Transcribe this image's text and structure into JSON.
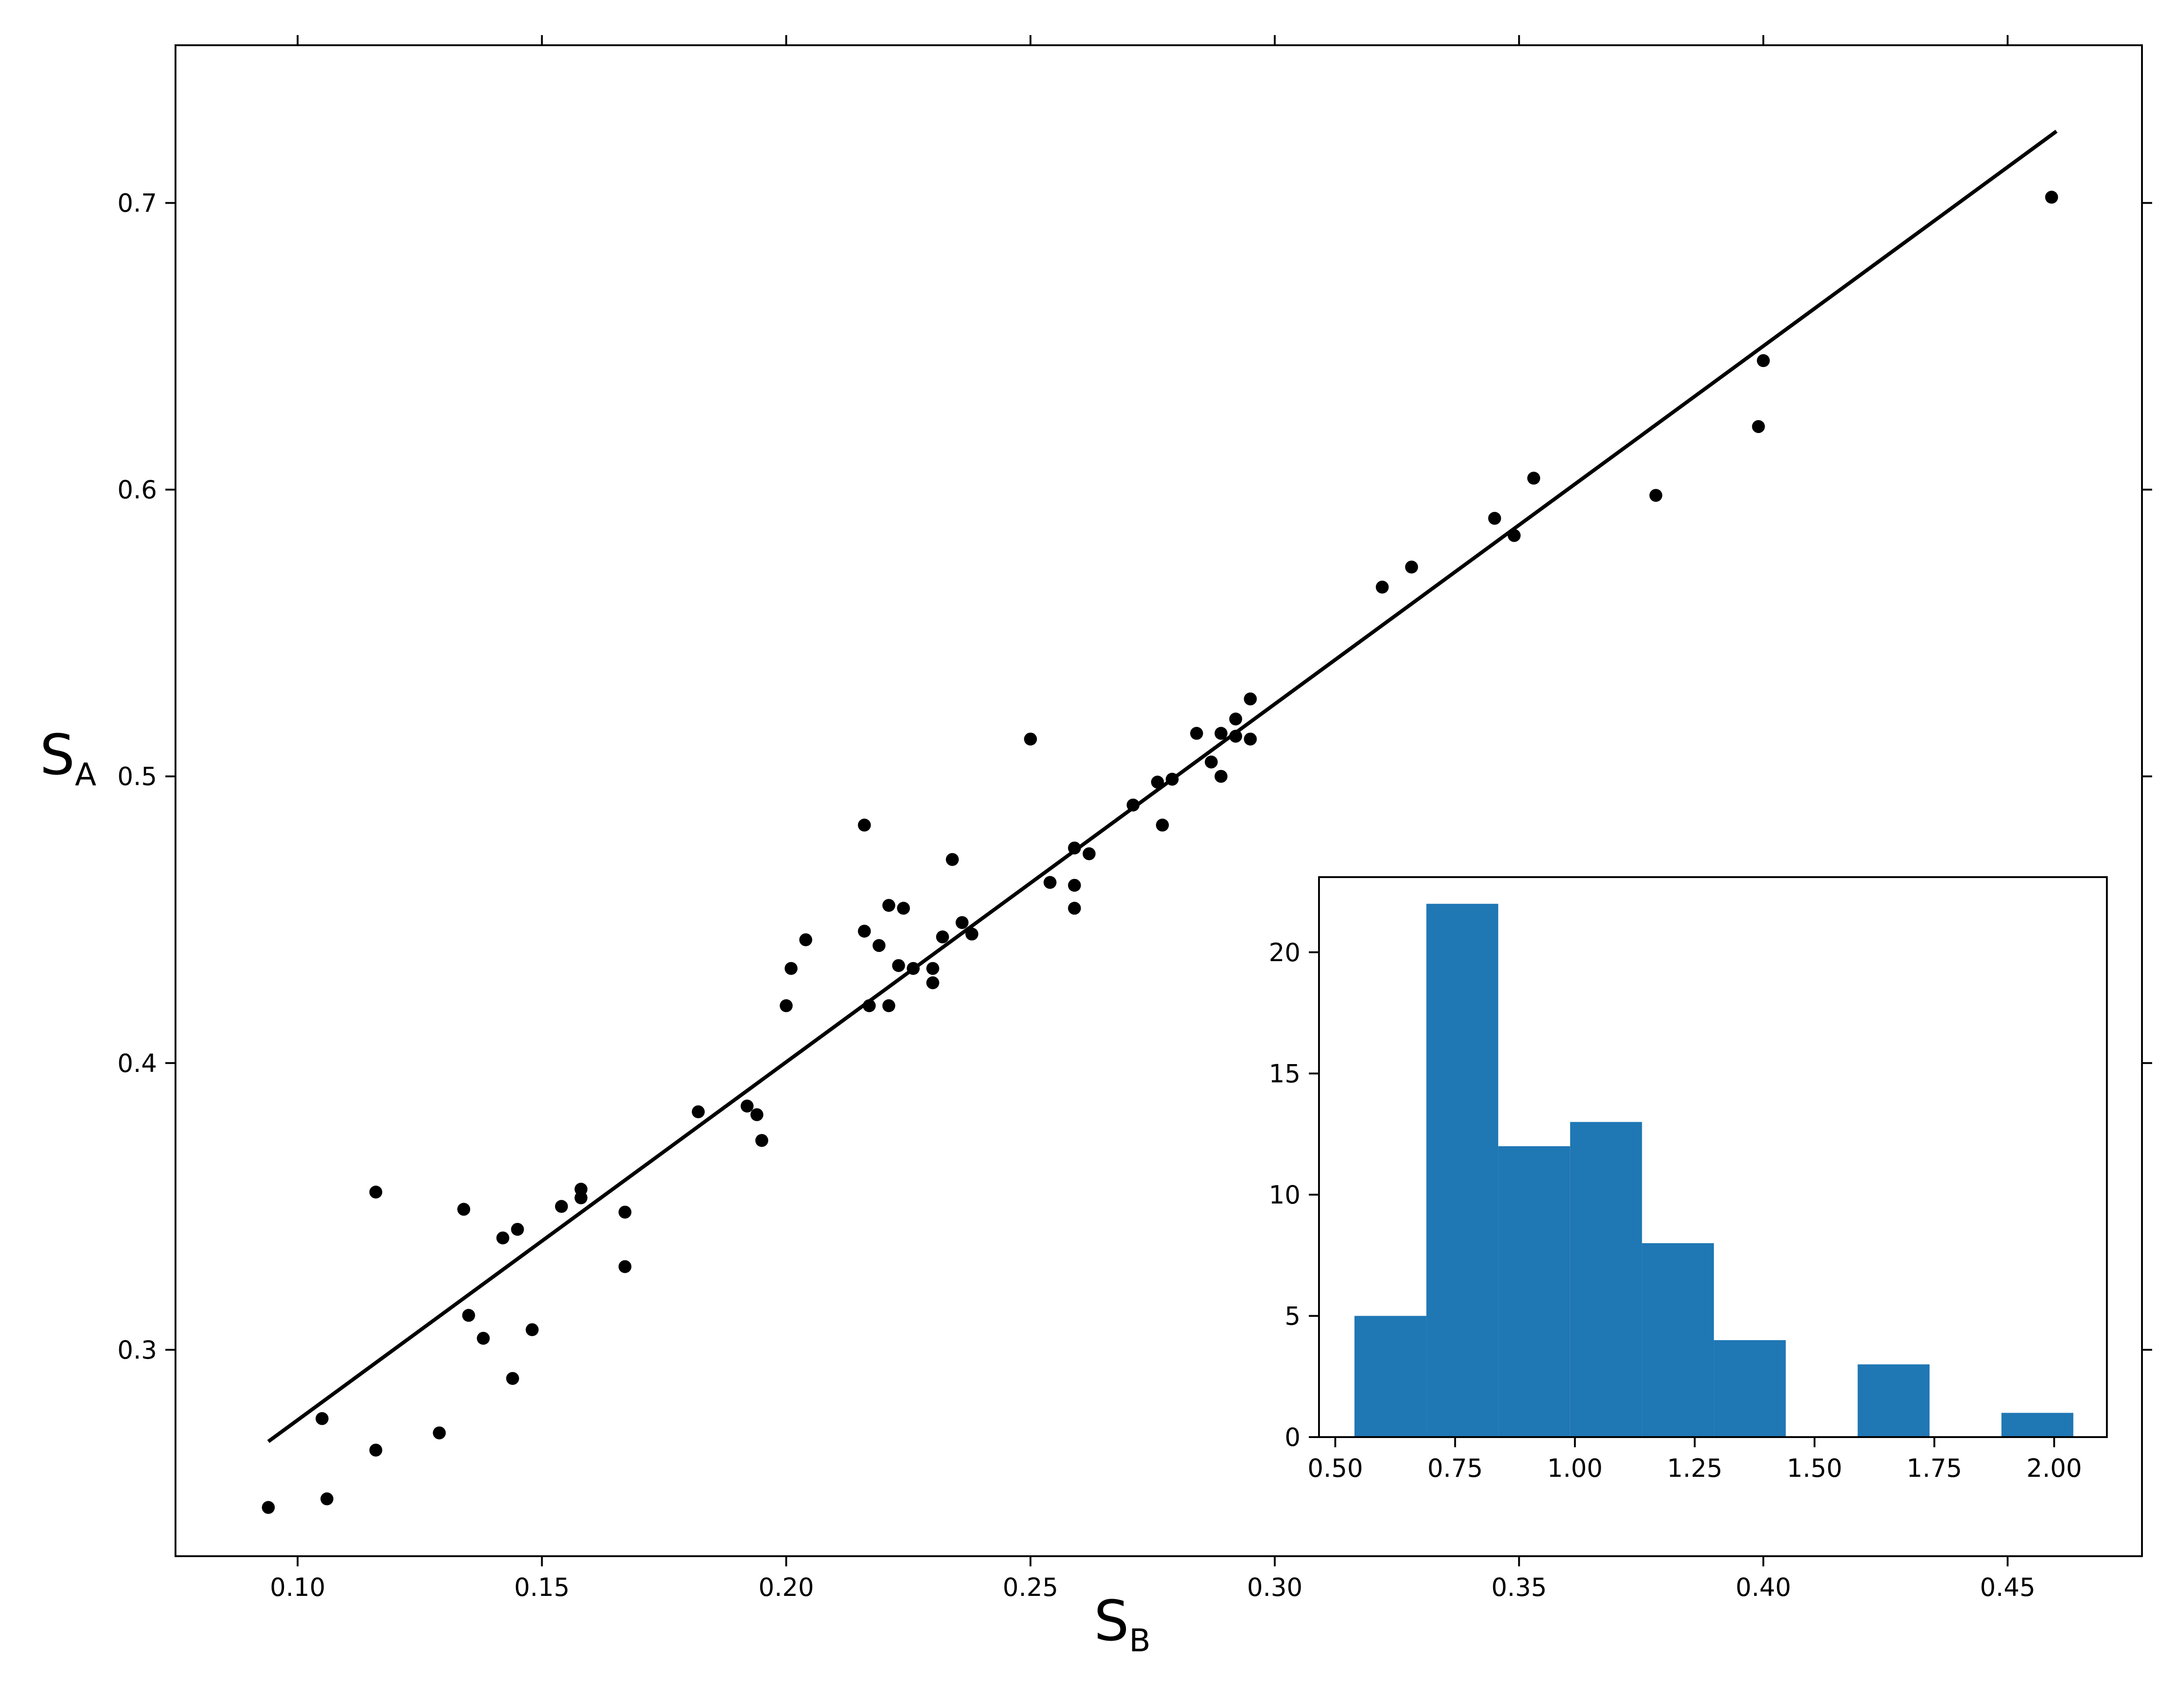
{
  "chart_data": [
    {
      "type": "scatter",
      "xlabel": "S",
      "xlabel_sub": "B",
      "ylabel": "S",
      "ylabel_sub": "A",
      "xlim": [
        0.075,
        0.4775
      ],
      "ylim": [
        0.228,
        0.755
      ],
      "xticks": [
        "0.10",
        "0.15",
        "0.20",
        "0.25",
        "0.30",
        "0.35",
        "0.40",
        "0.45"
      ],
      "yticks": [
        "0.3",
        "0.4",
        "0.5",
        "0.6",
        "0.7"
      ],
      "grid": false,
      "colors": {
        "points": "#000000",
        "fit_line": "#000000"
      },
      "fit_line": {
        "x": [
          0.094,
          0.46
        ],
        "y": [
          0.268,
          0.725
        ]
      },
      "points": [
        [
          0.094,
          0.245
        ],
        [
          0.105,
          0.276
        ],
        [
          0.106,
          0.248
        ],
        [
          0.116,
          0.355
        ],
        [
          0.116,
          0.265
        ],
        [
          0.129,
          0.271
        ],
        [
          0.134,
          0.349
        ],
        [
          0.135,
          0.312
        ],
        [
          0.138,
          0.304
        ],
        [
          0.142,
          0.339
        ],
        [
          0.144,
          0.29
        ],
        [
          0.145,
          0.342
        ],
        [
          0.148,
          0.307
        ],
        [
          0.154,
          0.35
        ],
        [
          0.158,
          0.356
        ],
        [
          0.158,
          0.353
        ],
        [
          0.167,
          0.348
        ],
        [
          0.167,
          0.329
        ],
        [
          0.182,
          0.383
        ],
        [
          0.192,
          0.385
        ],
        [
          0.194,
          0.382
        ],
        [
          0.195,
          0.373
        ],
        [
          0.2,
          0.42
        ],
        [
          0.201,
          0.433
        ],
        [
          0.204,
          0.443
        ],
        [
          0.216,
          0.483
        ],
        [
          0.216,
          0.446
        ],
        [
          0.217,
          0.42
        ],
        [
          0.219,
          0.441
        ],
        [
          0.221,
          0.455
        ],
        [
          0.221,
          0.42
        ],
        [
          0.223,
          0.434
        ],
        [
          0.224,
          0.454
        ],
        [
          0.226,
          0.433
        ],
        [
          0.23,
          0.433
        ],
        [
          0.23,
          0.428
        ],
        [
          0.232,
          0.444
        ],
        [
          0.234,
          0.471
        ],
        [
          0.236,
          0.449
        ],
        [
          0.238,
          0.445
        ],
        [
          0.25,
          0.513
        ],
        [
          0.254,
          0.463
        ],
        [
          0.259,
          0.475
        ],
        [
          0.259,
          0.462
        ],
        [
          0.259,
          0.454
        ],
        [
          0.262,
          0.473
        ],
        [
          0.271,
          0.49
        ],
        [
          0.276,
          0.498
        ],
        [
          0.277,
          0.483
        ],
        [
          0.279,
          0.499
        ],
        [
          0.284,
          0.515
        ],
        [
          0.287,
          0.505
        ],
        [
          0.289,
          0.515
        ],
        [
          0.289,
          0.5
        ],
        [
          0.292,
          0.52
        ],
        [
          0.292,
          0.514
        ],
        [
          0.295,
          0.527
        ],
        [
          0.295,
          0.513
        ],
        [
          0.322,
          0.566
        ],
        [
          0.328,
          0.573
        ],
        [
          0.345,
          0.59
        ],
        [
          0.349,
          0.584
        ],
        [
          0.353,
          0.604
        ],
        [
          0.378,
          0.598
        ],
        [
          0.399,
          0.622
        ],
        [
          0.4,
          0.645
        ],
        [
          0.459,
          0.702
        ]
      ]
    },
    {
      "type": "bar",
      "subtype": "histogram",
      "xlim": [
        0.466,
        2.11
      ],
      "ylim": [
        0,
        23.1
      ],
      "xticks": [
        "0.50",
        "0.75",
        "1.00",
        "1.25",
        "1.50",
        "1.75",
        "2.00"
      ],
      "yticks": [
        "0",
        "5",
        "10",
        "15",
        "20"
      ],
      "bin_edges": [
        0.54,
        0.69,
        0.84,
        0.99,
        1.14,
        1.29,
        1.44,
        1.59,
        1.74,
        1.89,
        2.04
      ],
      "values": [
        5,
        22,
        12,
        13,
        8,
        4,
        0,
        3,
        0,
        1
      ],
      "colors": {
        "bars": "#1f77b4"
      },
      "grid": false
    }
  ]
}
